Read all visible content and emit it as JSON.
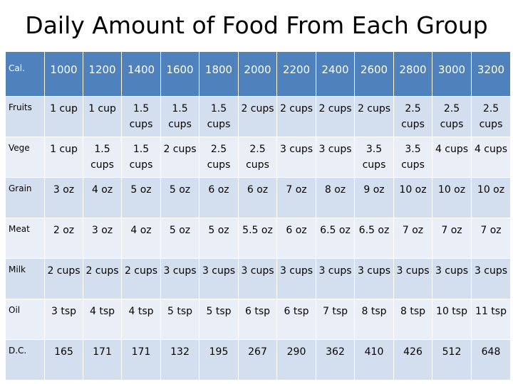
{
  "title": "Daily Amount of Food From Each Group",
  "table": {
    "header_label": "Cal.",
    "calories": [
      "1000",
      "1200",
      "1400",
      "1600",
      "1800",
      "2000",
      "2200",
      "2400",
      "2600",
      "2800",
      "3000",
      "3200"
    ],
    "rows": [
      {
        "label": "Fruits",
        "cells": [
          "1 cup",
          "1 cup",
          "1.5 cups",
          "1.5 cups",
          "1.5 cups",
          "2 cups",
          "2 cups",
          "2 cups",
          "2 cups",
          "2.5 cups",
          "2.5 cups",
          "2.5 cups"
        ]
      },
      {
        "label": "Vege",
        "cells": [
          "1 cup",
          "1.5 cups",
          "1.5 cups",
          "2 cups",
          "2.5 cups",
          "2.5 cups",
          "3 cups",
          "3 cups",
          "3.5 cups",
          "3.5 cups",
          "4 cups",
          "4 cups"
        ]
      },
      {
        "label": "Grain",
        "cells": [
          "3 oz",
          "4 oz",
          "5 oz",
          "5 oz",
          "6 oz",
          "6 oz",
          "7 oz",
          "8 oz",
          "9 oz",
          "10 oz",
          "10 oz",
          "10 oz"
        ]
      },
      {
        "label": "Meat",
        "cells": [
          "2 oz",
          "3 oz",
          "4 oz",
          "5 oz",
          "5 oz",
          "5.5 oz",
          "6 oz",
          "6.5 oz",
          "6.5 oz",
          "7 oz",
          "7 oz",
          "7 oz"
        ]
      },
      {
        "label": "Milk",
        "cells": [
          "2 cups",
          "2 cups",
          "2 cups",
          "3 cups",
          "3 cups",
          "3 cups",
          "3 cups",
          "3 cups",
          "3 cups",
          "3 cups",
          "3 cups",
          "3 cups"
        ]
      },
      {
        "label": "Oil",
        "cells": [
          "3 tsp",
          "4 tsp",
          "4 tsp",
          "5 tsp",
          "5 tsp",
          "6 tsp",
          "6 tsp",
          "7 tsp",
          "8 tsp",
          "8 tsp",
          "10 tsp",
          "11 tsp"
        ]
      },
      {
        "label": "D.C.",
        "cells": [
          "165",
          "171",
          "171",
          "132",
          "195",
          "267",
          "290",
          "362",
          "410",
          "426",
          "512",
          "648"
        ]
      }
    ]
  },
  "colors": {
    "header_bg": "#4f81bd",
    "row_band_1": "#d3dfee",
    "row_band_2": "#eaeff7"
  }
}
